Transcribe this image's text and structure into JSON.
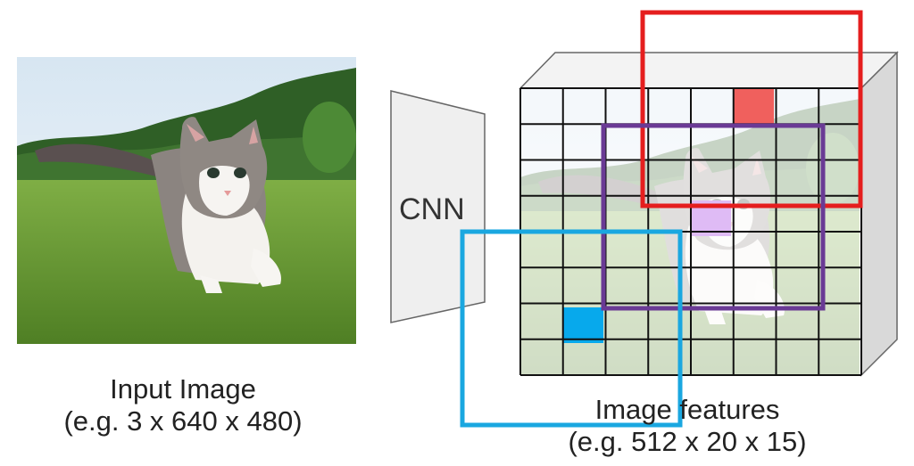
{
  "input": {
    "caption_line1": "Input Image",
    "caption_line2": "(e.g. 3 x 640 x 480)"
  },
  "cnn": {
    "label": "CNN"
  },
  "features": {
    "caption_line1": "Image features",
    "caption_line2": "(e.g. 512 x 20 x 15)",
    "grid_cols": 8,
    "grid_rows": 8
  },
  "colors": {
    "sky": "#e6eef6",
    "hills": "#2f5f26",
    "grass": "#6ea23a",
    "cnn_fill": "#efefef",
    "red_box": "#e51e1e",
    "red_cell": "#f0605d",
    "purple_box": "#6a3a95",
    "purple_cell": "#dfbbf5",
    "blue_box": "#1aa7e0",
    "blue_cell": "#07a9ec",
    "cube_side": "#d9d9d9",
    "cube_top": "#f3f3f3"
  }
}
